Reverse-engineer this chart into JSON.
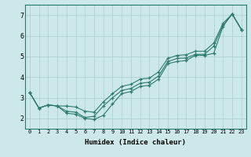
{
  "xlabel": "Humidex (Indice chaleur)",
  "xlim": [
    -0.5,
    23.5
  ],
  "ylim": [
    1.5,
    7.5
  ],
  "yticks": [
    2,
    3,
    4,
    5,
    6,
    7
  ],
  "xticks": [
    0,
    1,
    2,
    3,
    4,
    5,
    6,
    7,
    8,
    9,
    10,
    11,
    12,
    13,
    14,
    15,
    16,
    17,
    18,
    19,
    20,
    21,
    22,
    23
  ],
  "background_color": "#cce8e8",
  "line_color": "#2d7b6e",
  "grid_color": "#aacece",
  "series": [
    [
      3.25,
      2.5,
      2.65,
      2.6,
      2.25,
      2.2,
      2.0,
      1.95,
      2.15,
      2.7,
      3.2,
      3.3,
      3.55,
      3.6,
      3.9,
      4.65,
      4.75,
      4.8,
      5.05,
      5.05,
      5.15,
      6.45,
      7.05,
      6.3
    ],
    [
      3.25,
      2.5,
      2.65,
      2.6,
      2.35,
      2.3,
      2.05,
      2.1,
      2.6,
      3.0,
      3.35,
      3.45,
      3.7,
      3.75,
      4.05,
      4.75,
      4.9,
      4.92,
      5.1,
      5.1,
      5.5,
      6.5,
      7.05,
      6.3
    ],
    [
      3.25,
      2.5,
      2.65,
      2.6,
      2.6,
      2.55,
      2.35,
      2.3,
      2.8,
      3.2,
      3.55,
      3.65,
      3.9,
      3.95,
      4.25,
      4.9,
      5.05,
      5.08,
      5.25,
      5.25,
      5.65,
      6.6,
      7.05,
      6.3
    ]
  ]
}
